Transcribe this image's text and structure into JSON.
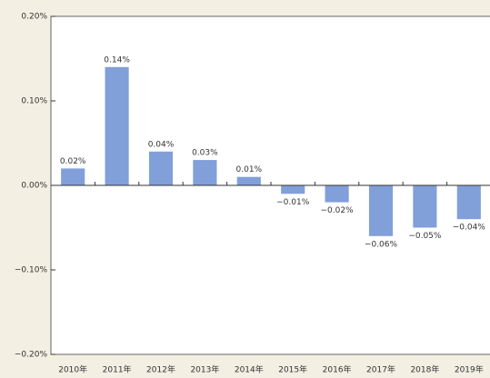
{
  "chart_data": {
    "type": "bar",
    "categories": [
      "2010年",
      "2011年",
      "2012年",
      "2013年",
      "2014年",
      "2015年",
      "2016年",
      "2017年",
      "2018年",
      "2019年"
    ],
    "values": [
      0.02,
      0.14,
      0.04,
      0.03,
      0.01,
      -0.01,
      -0.02,
      -0.06,
      -0.05,
      -0.04
    ],
    "value_labels": [
      "0.02%",
      "0.14%",
      "0.04%",
      "0.03%",
      "0.01%",
      "−0.01%",
      "−0.02%",
      "−0.06%",
      "−0.05%",
      "−0.04%"
    ],
    "color": "#819fd9",
    "ylim": [
      -0.2,
      0.2
    ],
    "yticks": [
      {
        "value": -0.2,
        "label": "−0.20%"
      },
      {
        "value": -0.1,
        "label": "−0.10%"
      },
      {
        "value": 0,
        "label": "0.00%"
      },
      {
        "value": 0.1,
        "label": "0.10%"
      },
      {
        "value": 0.2,
        "label": "0.20%"
      }
    ],
    "grid": false
  }
}
